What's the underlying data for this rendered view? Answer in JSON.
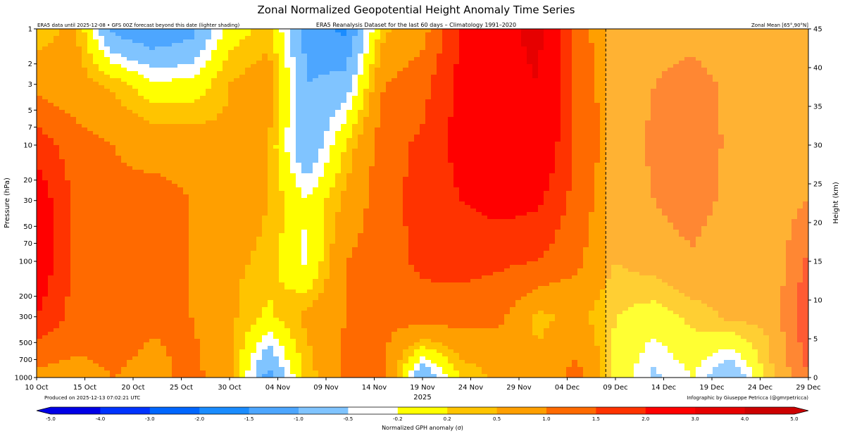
{
  "chart_data": {
    "type": "heatmap",
    "title": "Zonal Normalized Geopotential Height Anomaly Time Series",
    "note_left": "ERA5 data until 2025-12-08 • GFS 00Z forecast beyond this date (lighter shading)",
    "subtitle": "ERA5 Reanalysis Dataset for the last 60 days – Climatology 1991–2020",
    "note_right": "Zonal Mean [65°,90°N]",
    "ylabel": "Pressure (hPa)",
    "ylabel_right": "Height (km)",
    "xlabel": "2025",
    "produced": "Produced on 2025-12-13 07:02:21 UTC",
    "credit": "Infographic by Giuseppe Petricca (@gmrpetricca)",
    "colorbar_label": "Normalized GPH anomaly (σ)",
    "x_dates": [
      "10 Oct",
      "15 Oct",
      "20 Oct",
      "25 Oct",
      "30 Oct",
      "04 Nov",
      "09 Nov",
      "14 Nov",
      "19 Nov",
      "24 Nov",
      "29 Nov",
      "04 Dec",
      "09 Dec",
      "14 Dec",
      "19 Dec",
      "24 Dec",
      "29 Dec"
    ],
    "x_day_range": [
      0,
      80
    ],
    "forecast_start_day": 59,
    "pressure_ticks": [
      "1",
      "2",
      "3",
      "5",
      "7",
      "10",
      "20",
      "30",
      "50",
      "70",
      "100",
      "200",
      "300",
      "500",
      "700",
      "1000"
    ],
    "pressure_range_hpa": [
      1,
      1000
    ],
    "height_ticks": [
      "0",
      "5",
      "10",
      "15",
      "20",
      "25",
      "30",
      "35",
      "40",
      "45"
    ],
    "height_range_km": [
      0,
      45
    ],
    "levels": [
      -5.0,
      -4.0,
      -3.0,
      -2.0,
      -1.5,
      -1.0,
      -0.5,
      -0.2,
      0.2,
      0.5,
      1.0,
      1.5,
      2.0,
      3.0,
      4.0,
      5.0
    ],
    "level_labels": [
      "-5.0",
      "-4.0",
      "-3.0",
      "-2.0",
      "-1.5",
      "-1.0",
      "-0.5",
      "-0.2",
      "0.2",
      "0.5",
      "1.0",
      "1.5",
      "2.0",
      "3.0",
      "4.0",
      "5.0"
    ],
    "level_colors": [
      "#0000e6",
      "#0033ff",
      "#0066ff",
      "#1a8cff",
      "#4da6ff",
      "#80c4ff",
      "#ffffff",
      "#ffff00",
      "#ffc400",
      "#ff9f00",
      "#ff6a00",
      "#ff3300",
      "#ff0000",
      "#e60000",
      "#cc0000"
    ],
    "colors": {
      "background": "#ffffff",
      "forecast_line": "#000000"
    },
    "pressure_levels_hpa": [
      1,
      3,
      10,
      30,
      100,
      300,
      1000
    ],
    "days": [
      0,
      4,
      8,
      12,
      16,
      20,
      24,
      28,
      32,
      36,
      40,
      44,
      48,
      52,
      56,
      60,
      64,
      68,
      72,
      76,
      80
    ],
    "anomaly_grid": [
      [
        0.3,
        0.6,
        -1.2,
        -1.5,
        -1.2,
        0.0,
        0.3,
        -1.2,
        -1.6,
        0.4,
        0.8,
        2.0,
        2.8,
        3.2,
        1.2,
        0.6,
        0.8,
        0.8,
        0.6,
        0.7,
        0.6
      ],
      [
        0.8,
        0.7,
        0.4,
        -0.1,
        -0.1,
        0.5,
        0.8,
        -1.0,
        -0.8,
        1.0,
        1.3,
        2.2,
        2.7,
        3.0,
        1.3,
        0.7,
        1.0,
        1.2,
        0.9,
        0.8,
        0.7
      ],
      [
        1.8,
        1.2,
        1.0,
        0.8,
        0.8,
        0.6,
        0.5,
        -1.0,
        0.2,
        1.3,
        1.6,
        2.2,
        2.5,
        2.6,
        1.4,
        0.7,
        1.1,
        1.3,
        0.9,
        0.8,
        0.7
      ],
      [
        2.4,
        1.4,
        1.1,
        1.2,
        1.0,
        0.8,
        0.5,
        -0.2,
        0.6,
        1.3,
        1.7,
        2.0,
        2.2,
        2.1,
        1.3,
        0.6,
        1.0,
        1.3,
        0.8,
        0.7,
        1.0
      ],
      [
        2.5,
        1.4,
        1.2,
        1.2,
        1.0,
        0.6,
        0.4,
        -0.3,
        1.0,
        1.3,
        1.6,
        1.7,
        1.6,
        1.5,
        1.1,
        0.5,
        0.7,
        0.9,
        0.6,
        0.6,
        1.6
      ],
      [
        2.0,
        1.3,
        1.3,
        1.1,
        1.0,
        0.6,
        0.1,
        0.6,
        1.0,
        1.1,
        1.3,
        1.2,
        1.1,
        0.4,
        0.6,
        0.2,
        0.0,
        0.3,
        0.6,
        0.6,
        2.0
      ],
      [
        0.8,
        0.8,
        1.0,
        0.8,
        1.2,
        0.6,
        -1.2,
        0.3,
        1.1,
        1.1,
        -1.0,
        0.2,
        0.6,
        0.6,
        1.2,
        0.1,
        -0.6,
        -0.2,
        -1.0,
        0.4,
        1.5
      ]
    ]
  }
}
